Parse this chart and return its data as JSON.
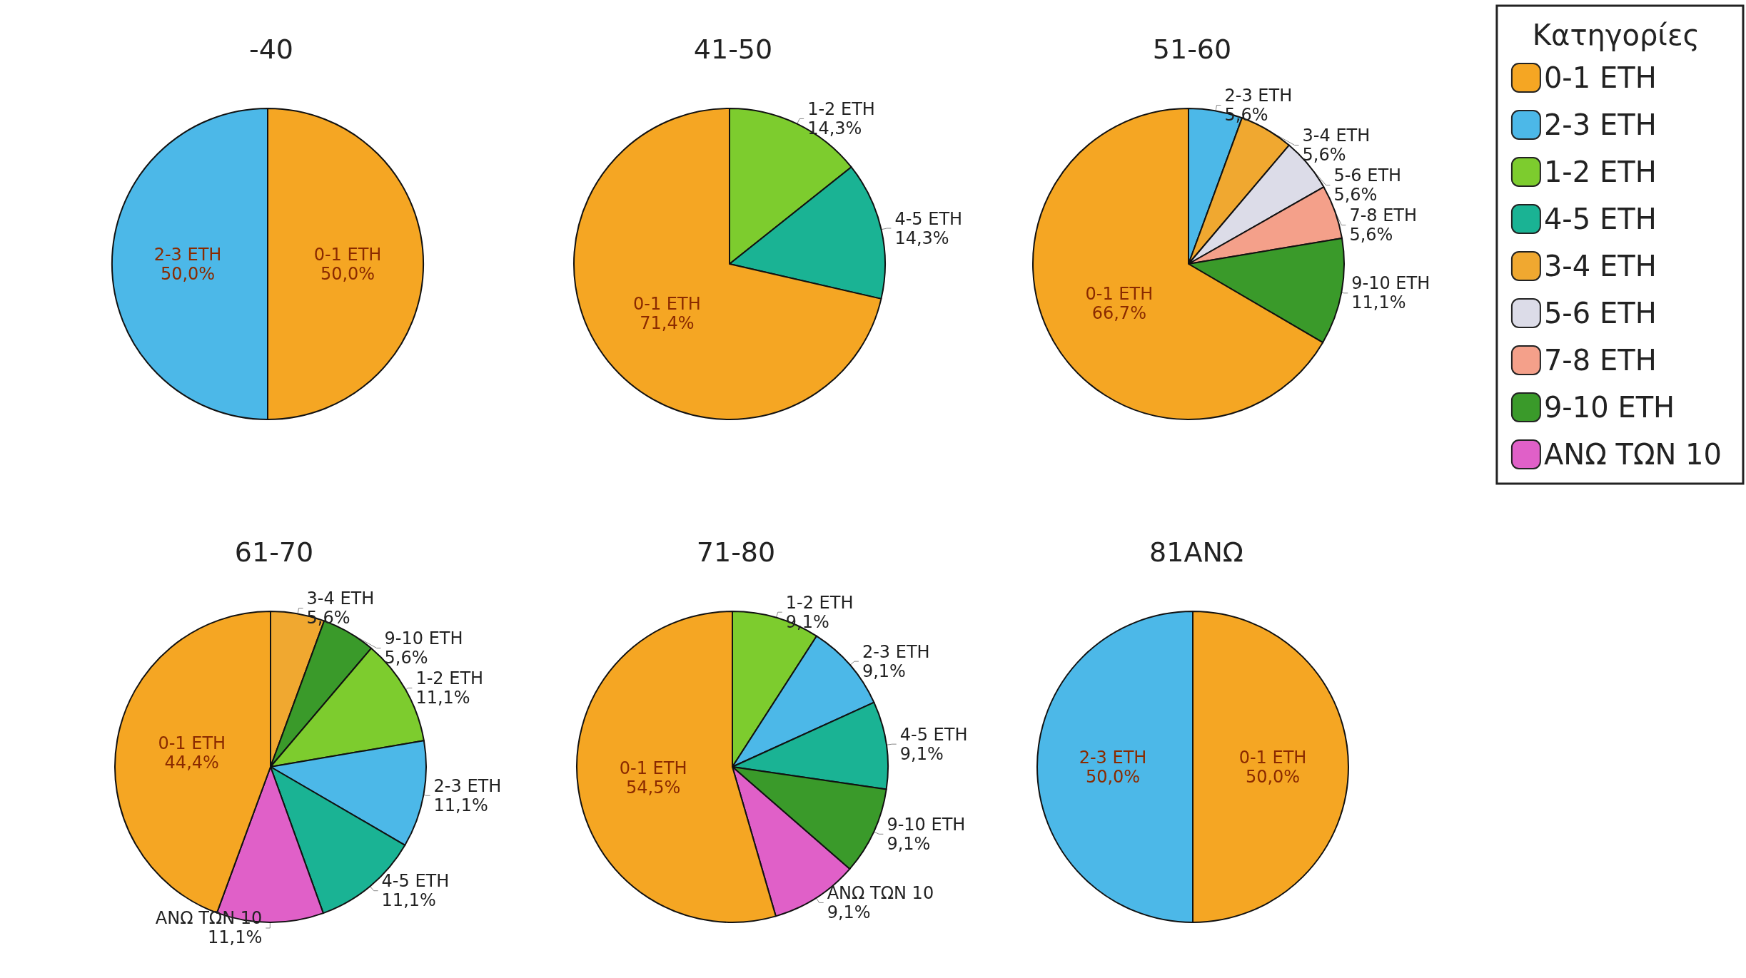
{
  "chart_data": [
    {
      "type": "pie",
      "title": "-40",
      "categories": [
        "0-1 ΕΤΗ",
        "2-3 ΕΤΗ"
      ],
      "values": [
        50,
        50
      ],
      "value_labels": [
        "50,0%",
        "50,0%"
      ],
      "colors": [
        "#f5a623",
        "#4cb8e8"
      ],
      "legend": "right"
    },
    {
      "type": "pie",
      "title": "41-50",
      "categories": [
        "1-2 ΕΤΗ",
        "4-5 ΕΤΗ",
        "0-1 ΕΤΗ"
      ],
      "values": [
        14.3,
        14.3,
        71.4
      ],
      "value_labels": [
        "14,3%",
        "14,3%",
        "71,4%"
      ],
      "colors": [
        "#7dcc2e",
        "#1ab394",
        "#f5a623"
      ],
      "legend": "right"
    },
    {
      "type": "pie",
      "title": "51-60",
      "categories": [
        "2-3 ΕΤΗ",
        "3-4 ΕΤΗ",
        "5-6 ΕΤΗ",
        "7-8 ΕΤΗ",
        "9-10 ΕΤΗ",
        "0-1 ΕΤΗ"
      ],
      "values": [
        5.6,
        5.6,
        5.6,
        5.6,
        11.1,
        66.7
      ],
      "value_labels": [
        "5,6%",
        "5,6%",
        "5,6%",
        "5,6%",
        "11,1%",
        "66,7%"
      ],
      "colors": [
        "#4cb8e8",
        "#f0a830",
        "#dcdce8",
        "#f4a08a",
        "#3a9a2a",
        "#f5a623"
      ],
      "legend": "right",
      "legend_title": "Κατηγορίες"
    },
    {
      "type": "pie",
      "title": "61-70",
      "categories": [
        "3-4 ΕΤΗ",
        "9-10 ΕΤΗ",
        "1-2 ΕΤΗ",
        "2-3 ΕΤΗ",
        "4-5 ΕΤΗ",
        "ΑΝΩ ΤΩΝ 10",
        "0-1 ΕΤΗ"
      ],
      "values": [
        5.6,
        5.6,
        11.1,
        11.1,
        11.1,
        11.1,
        44.4
      ],
      "value_labels": [
        "5,6%",
        "5,6%",
        "11,1%",
        "11,1%",
        "11,1%",
        "11,1%",
        "44,4%"
      ],
      "colors": [
        "#f0a830",
        "#3a9a2a",
        "#7dcc2e",
        "#4cb8e8",
        "#1ab394",
        "#e060c8",
        "#f5a623"
      ],
      "legend": "right"
    },
    {
      "type": "pie",
      "title": "71-80",
      "categories": [
        "1-2 ΕΤΗ",
        "2-3 ΕΤΗ",
        "4-5 ΕΤΗ",
        "9-10 ΕΤΗ",
        "ΑΝΩ ΤΩΝ 10",
        "0-1 ΕΤΗ"
      ],
      "values": [
        9.1,
        9.1,
        9.1,
        9.1,
        9.1,
        54.5
      ],
      "value_labels": [
        "9,1%",
        "9,1%",
        "9,1%",
        "9,1%",
        "9,1%",
        "54,5%"
      ],
      "colors": [
        "#7dcc2e",
        "#4cb8e8",
        "#1ab394",
        "#3a9a2a",
        "#e060c8",
        "#f5a623"
      ]
    },
    {
      "type": "pie",
      "title": "81ΑΝΩ",
      "categories": [
        "0-1 ΕΤΗ",
        "2-3 ΕΤΗ"
      ],
      "values": [
        50,
        50
      ],
      "value_labels": [
        "50,0%",
        "50,0%"
      ],
      "colors": [
        "#f5a623",
        "#4cb8e8"
      ]
    }
  ]
}
